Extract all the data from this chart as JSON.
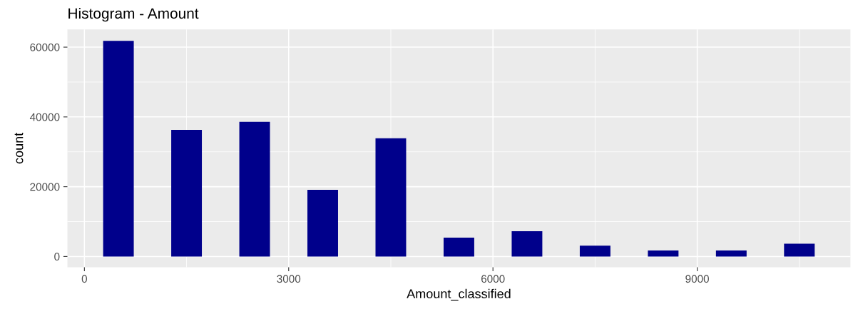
{
  "chart_data": {
    "type": "bar",
    "title": "Histogram - Amount",
    "xlabel": "Amount_classified",
    "ylabel": "count",
    "x": [
      500,
      1500,
      2500,
      3500,
      4500,
      5500,
      6500,
      7500,
      8500,
      9500,
      10500
    ],
    "values": [
      61800,
      36300,
      38600,
      19100,
      33900,
      5400,
      7250,
      3100,
      1700,
      1700,
      3650
    ],
    "color": "#00008b",
    "xlim": [
      -250,
      11250
    ],
    "xticks": [
      0,
      3000,
      6000,
      9000
    ],
    "ylim": [
      -3100,
      65100
    ],
    "yticks": [
      0,
      20000,
      40000,
      60000
    ],
    "grid": true
  }
}
